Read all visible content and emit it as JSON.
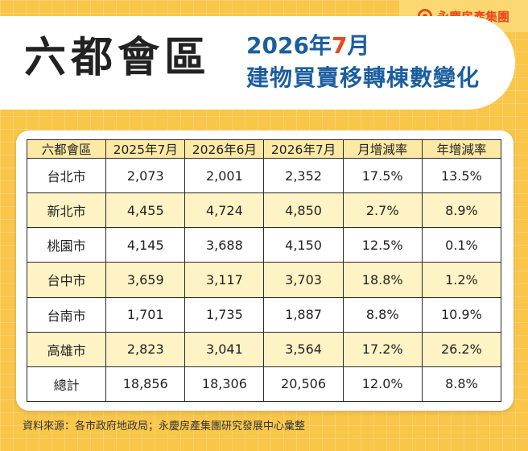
{
  "brand": {
    "name": "永慶房產集團",
    "logo_icon": "brand-logo-icon"
  },
  "header": {
    "title": "六都會區",
    "subtitle_year_prefix": "2026年",
    "subtitle_month": "7",
    "subtitle_month_suffix": "月",
    "subtitle_desc": "建物買賣移轉棟數變化"
  },
  "table": {
    "columns": [
      "六都會區",
      "2025年7月",
      "2026年6月",
      "2026年7月",
      "月增減率",
      "年增減率"
    ],
    "rows": [
      [
        "台北市",
        "2,073",
        "2,001",
        "2,352",
        "17.5%",
        "13.5%"
      ],
      [
        "新北市",
        "4,455",
        "4,724",
        "4,850",
        "2.7%",
        "8.9%"
      ],
      [
        "桃園市",
        "4,145",
        "3,688",
        "4,150",
        "12.5%",
        "0.1%"
      ],
      [
        "台中市",
        "3,659",
        "3,117",
        "3,703",
        "18.8%",
        "1.2%"
      ],
      [
        "台南市",
        "1,701",
        "1,735",
        "1,887",
        "8.8%",
        "10.9%"
      ],
      [
        "高雄市",
        "2,823",
        "3,041",
        "3,564",
        "17.2%",
        "26.2%"
      ],
      [
        "總計",
        "18,856",
        "18,306",
        "20,506",
        "12.0%",
        "8.8%"
      ]
    ]
  },
  "footer": {
    "source": "資料來源：各市政府地政局；永慶房產集團研究發展中心彙整"
  },
  "colors": {
    "background": "#f9c64a",
    "accent": "#e8491d",
    "blue": "#1b5e9e",
    "header_cell": "#fde9a4"
  }
}
